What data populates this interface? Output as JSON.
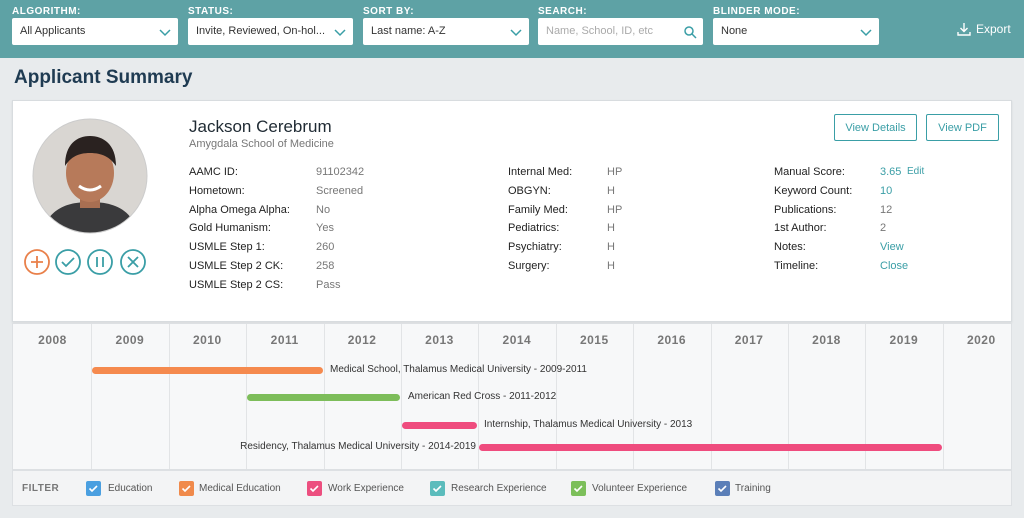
{
  "toolbar": {
    "filters": [
      {
        "label": "ALGORITHM:",
        "value": "All Applicants"
      },
      {
        "label": "STATUS:",
        "value": "Invite, Reviewed, On-hol..."
      },
      {
        "label": "SORT BY:",
        "value": "Last name: A-Z"
      },
      {
        "label": "SEARCH:",
        "placeholder": "Name, School, ID, etc"
      },
      {
        "label": "BLINDER MODE:",
        "value": "None"
      }
    ],
    "export": "Export"
  },
  "header": {
    "title": "Applicant Summary"
  },
  "applicant": {
    "name": "Jackson Cerebrum",
    "school": "Amygdala School of Medicine",
    "buttons": [
      "View Details",
      "View PDF"
    ],
    "columns": [
      [
        {
          "label": "AAMC ID:",
          "value": "91102342"
        },
        {
          "label": "Hometown:",
          "value": "Screened"
        },
        {
          "label": "Alpha Omega Alpha:",
          "value": "No"
        },
        {
          "label": "Gold Humanism:",
          "value": "Yes"
        },
        {
          "label": "USMLE Step 1:",
          "value": "260"
        },
        {
          "label": "USMLE Step 2 CK:",
          "value": "258"
        },
        {
          "label": "USMLE Step 2 CS:",
          "value": "Pass"
        }
      ],
      [
        {
          "label": "Internal Med:",
          "value": "HP"
        },
        {
          "label": "OBGYN:",
          "value": "H"
        },
        {
          "label": "Family Med:",
          "value": "HP"
        },
        {
          "label": "Pediatrics:",
          "value": "H"
        },
        {
          "label": "Psychiatry:",
          "value": "H"
        },
        {
          "label": "Surgery:",
          "value": "H"
        }
      ],
      [
        {
          "label": "Manual Score:",
          "value": "3.65",
          "action": "Edit"
        },
        {
          "label": "Keyword Count:",
          "value": "10"
        },
        {
          "label": "Publications:",
          "value": "12"
        },
        {
          "label": "1st Author:",
          "value": "2"
        },
        {
          "label": "Notes:",
          "value": "View"
        },
        {
          "label": "Timeline:",
          "value": "Close"
        }
      ]
    ]
  },
  "timeline": {
    "years": [
      "2008",
      "2009",
      "2010",
      "2011",
      "2012",
      "2013",
      "2014",
      "2015",
      "2016",
      "2017",
      "2018",
      "2019",
      "2020"
    ],
    "events": [
      "Medical School, Thalamus Medical University - 2009-2011",
      "American Red Cross - 2011-2012",
      "Internship, Thalamus Medical University - 2013",
      "Residency, Thalamus Medical University - 2014-2019"
    ]
  },
  "filter": {
    "title": "FILTER",
    "items": [
      "Education",
      "Medical Education",
      "Work Experience",
      "Research Experience",
      "Volunteer Experience",
      "Training"
    ]
  }
}
